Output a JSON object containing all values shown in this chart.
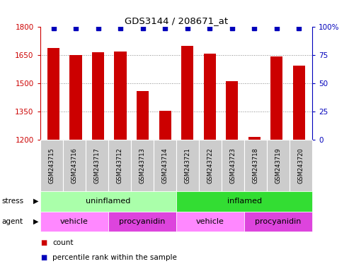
{
  "title": "GDS3144 / 208671_at",
  "samples": [
    "GSM243715",
    "GSM243716",
    "GSM243717",
    "GSM243712",
    "GSM243713",
    "GSM243714",
    "GSM243721",
    "GSM243722",
    "GSM243723",
    "GSM243718",
    "GSM243719",
    "GSM243720"
  ],
  "counts": [
    1690,
    1650,
    1665,
    1670,
    1460,
    1355,
    1700,
    1660,
    1510,
    1215,
    1645,
    1595
  ],
  "percentile_ranks": [
    99,
    99,
    99,
    99,
    99,
    99,
    99,
    99,
    99,
    99,
    99,
    99
  ],
  "ymin": 1200,
  "ymax": 1800,
  "yticks": [
    1200,
    1350,
    1500,
    1650,
    1800
  ],
  "right_yticks": [
    0,
    25,
    50,
    75,
    100
  ],
  "right_yticklabels": [
    "0",
    "25",
    "50",
    "75",
    "100%"
  ],
  "bar_color": "#cc0000",
  "dot_color": "#0000bb",
  "stress_groups": [
    {
      "label": "uninflamed",
      "start": 0,
      "end": 6,
      "color": "#aaffaa"
    },
    {
      "label": "inflamed",
      "start": 6,
      "end": 12,
      "color": "#33dd33"
    }
  ],
  "agent_groups": [
    {
      "label": "vehicle",
      "start": 0,
      "end": 3,
      "color": "#ff88ff"
    },
    {
      "label": "procyanidin",
      "start": 3,
      "end": 6,
      "color": "#dd44dd"
    },
    {
      "label": "vehicle",
      "start": 6,
      "end": 9,
      "color": "#ff88ff"
    },
    {
      "label": "procyanidin",
      "start": 9,
      "end": 12,
      "color": "#dd44dd"
    }
  ],
  "stress_label": "stress",
  "agent_label": "agent",
  "legend_count_label": "count",
  "legend_pct_label": "percentile rank within the sample",
  "bg_color": "#ffffff",
  "grid_color": "#888888",
  "axis_color_left": "#cc0000",
  "axis_color_right": "#0000bb",
  "sample_bg_color": "#cccccc",
  "sample_font_size": 6,
  "bar_width": 0.55
}
